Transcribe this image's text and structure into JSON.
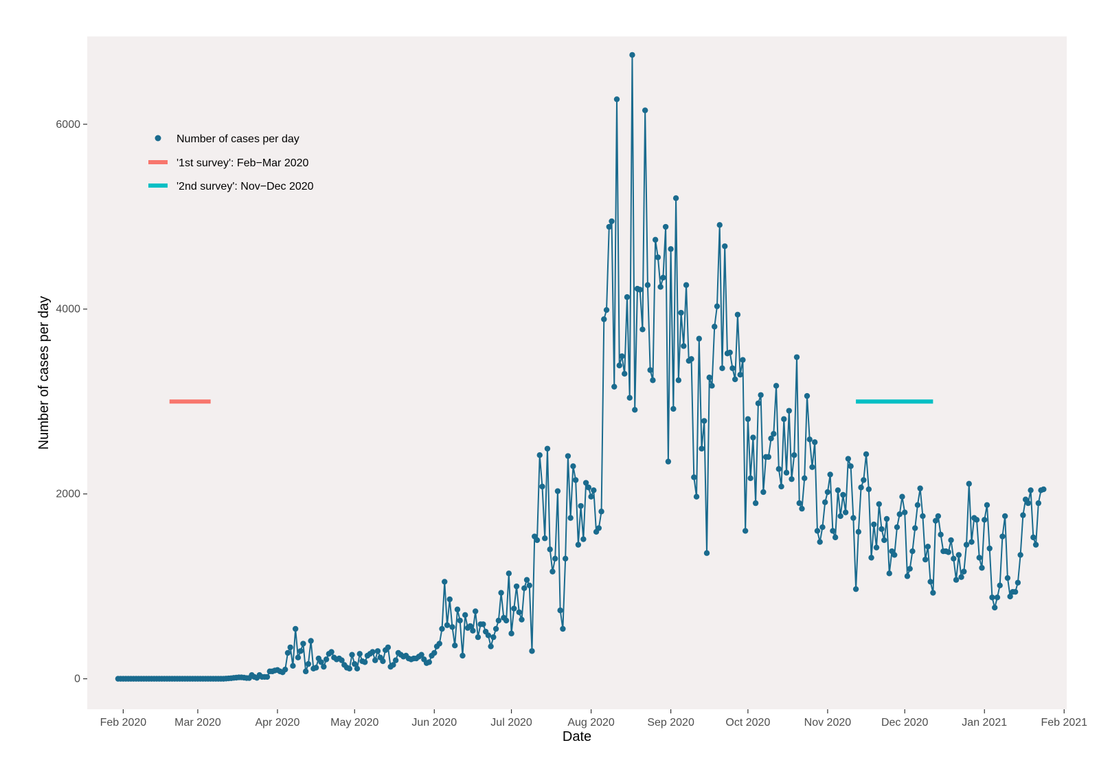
{
  "chart_data": {
    "type": "line",
    "xlabel": "Date",
    "ylabel": "Number of cases per day",
    "x_axis": {
      "type": "date",
      "range": [
        "2020-01-18",
        "2021-02-02"
      ],
      "ticks": [
        {
          "date": "2020-02-01",
          "label": "Feb 2020"
        },
        {
          "date": "2020-03-01",
          "label": "Mar 2020"
        },
        {
          "date": "2020-04-01",
          "label": "Apr 2020"
        },
        {
          "date": "2020-05-01",
          "label": "May 2020"
        },
        {
          "date": "2020-06-01",
          "label": "Jun 2020"
        },
        {
          "date": "2020-07-01",
          "label": "Jul 2020"
        },
        {
          "date": "2020-08-01",
          "label": "Aug 2020"
        },
        {
          "date": "2020-09-01",
          "label": "Sep 2020"
        },
        {
          "date": "2020-10-01",
          "label": "Oct 2020"
        },
        {
          "date": "2020-11-01",
          "label": "Nov 2020"
        },
        {
          "date": "2020-12-01",
          "label": "Dec 2020"
        },
        {
          "date": "2021-01-01",
          "label": "Jan 2021"
        },
        {
          "date": "2021-02-01",
          "label": "Feb 2021"
        }
      ]
    },
    "y_axis": {
      "range": [
        -330,
        6950
      ],
      "ticks": [
        0,
        2000,
        4000,
        6000
      ]
    },
    "legend_position": "top-left",
    "panel_background": "#f3efef",
    "series": [
      {
        "name": "Number of cases per day",
        "kind": "line+points",
        "color": "#1a6b8e",
        "start_date": "2020-01-30",
        "values": [
          0,
          0,
          0,
          0,
          0,
          0,
          0,
          0,
          0,
          0,
          0,
          0,
          0,
          0,
          0,
          0,
          0,
          0,
          0,
          0,
          0,
          0,
          0,
          0,
          0,
          0,
          0,
          0,
          0,
          0,
          0,
          0,
          0,
          0,
          0,
          0,
          0,
          0,
          0,
          0,
          0,
          0,
          2,
          4,
          6,
          10,
          12,
          15,
          15,
          12,
          8,
          8,
          40,
          20,
          10,
          40,
          20,
          20,
          20,
          80,
          80,
          90,
          95,
          80,
          70,
          100,
          280,
          340,
          140,
          540,
          230,
          300,
          380,
          80,
          160,
          410,
          110,
          120,
          220,
          180,
          130,
          210,
          270,
          290,
          230,
          210,
          220,
          200,
          150,
          120,
          110,
          260,
          160,
          110,
          270,
          190,
          180,
          250,
          270,
          290,
          200,
          300,
          230,
          190,
          310,
          340,
          130,
          150,
          200,
          280,
          260,
          240,
          250,
          220,
          210,
          220,
          220,
          240,
          260,
          210,
          170,
          180,
          250,
          280,
          350,
          380,
          540,
          1050,
          580,
          860,
          560,
          360,
          750,
          630,
          250,
          690,
          550,
          570,
          520,
          730,
          450,
          590,
          590,
          510,
          470,
          350,
          450,
          540,
          630,
          930,
          660,
          630,
          1140,
          490,
          760,
          1000,
          720,
          640,
          980,
          1070,
          1010,
          300,
          1540,
          1500,
          2420,
          2080,
          1520,
          2490,
          1400,
          1160,
          1300,
          2030,
          740,
          540,
          1300,
          2410,
          1740,
          2300,
          2150,
          1450,
          1870,
          1510,
          2120,
          2070,
          1970,
          2040,
          1590,
          1630,
          1810,
          3890,
          3990,
          4890,
          4950,
          3160,
          6270,
          3390,
          3490,
          3300,
          4130,
          3040,
          6750,
          2910,
          4220,
          4210,
          3780,
          6150,
          4260,
          3340,
          3230,
          4750,
          4560,
          4240,
          4340,
          4890,
          2350,
          4650,
          2920,
          5200,
          3230,
          3960,
          3600,
          4260,
          3440,
          3460,
          2180,
          1970,
          3680,
          2490,
          2790,
          1360,
          3260,
          3170,
          3810,
          4030,
          4910,
          3360,
          4680,
          3520,
          3530,
          3360,
          3240,
          3940,
          3290,
          3450,
          1600,
          2810,
          2170,
          2610,
          1900,
          2980,
          3070,
          2020,
          2400,
          2400,
          2600,
          2650,
          3170,
          2270,
          2080,
          2810,
          2230,
          2900,
          2160,
          2420,
          3480,
          1900,
          1840,
          2170,
          3060,
          2590,
          2290,
          2560,
          1600,
          1480,
          1640,
          1910,
          2020,
          2210,
          1600,
          1530,
          2040,
          1760,
          1990,
          1800,
          2380,
          2300,
          1740,
          970,
          1590,
          2070,
          2150,
          2430,
          2050,
          1310,
          1670,
          1420,
          1890,
          1620,
          1500,
          1730,
          1140,
          1380,
          1340,
          1640,
          1780,
          1970,
          1800,
          1110,
          1190,
          1380,
          1630,
          1880,
          2060,
          1760,
          1290,
          1430,
          1050,
          930,
          1710,
          1760,
          1560,
          1380,
          1380,
          1370,
          1500,
          1300,
          1070,
          1340,
          1100,
          1160,
          1450,
          2110,
          1480,
          1740,
          1720,
          1310,
          1200,
          1720,
          1880,
          1410,
          880,
          770,
          880,
          1010,
          1540,
          1760,
          1090,
          890,
          940,
          940,
          1040,
          1340,
          1770,
          1940,
          1900,
          2040,
          1530,
          1450,
          1900,
          2040,
          2050
        ]
      },
      {
        "name": "'1st survey': Feb−Mar 2020",
        "kind": "segment",
        "color": "#f8766d",
        "x": [
          "2020-02-19",
          "2020-03-06"
        ],
        "y": 3000
      },
      {
        "name": "'2nd survey': Nov−Dec 2020",
        "kind": "segment",
        "color": "#00bfc4",
        "x": [
          "2020-11-12",
          "2020-12-12"
        ],
        "y": 3000
      }
    ]
  }
}
